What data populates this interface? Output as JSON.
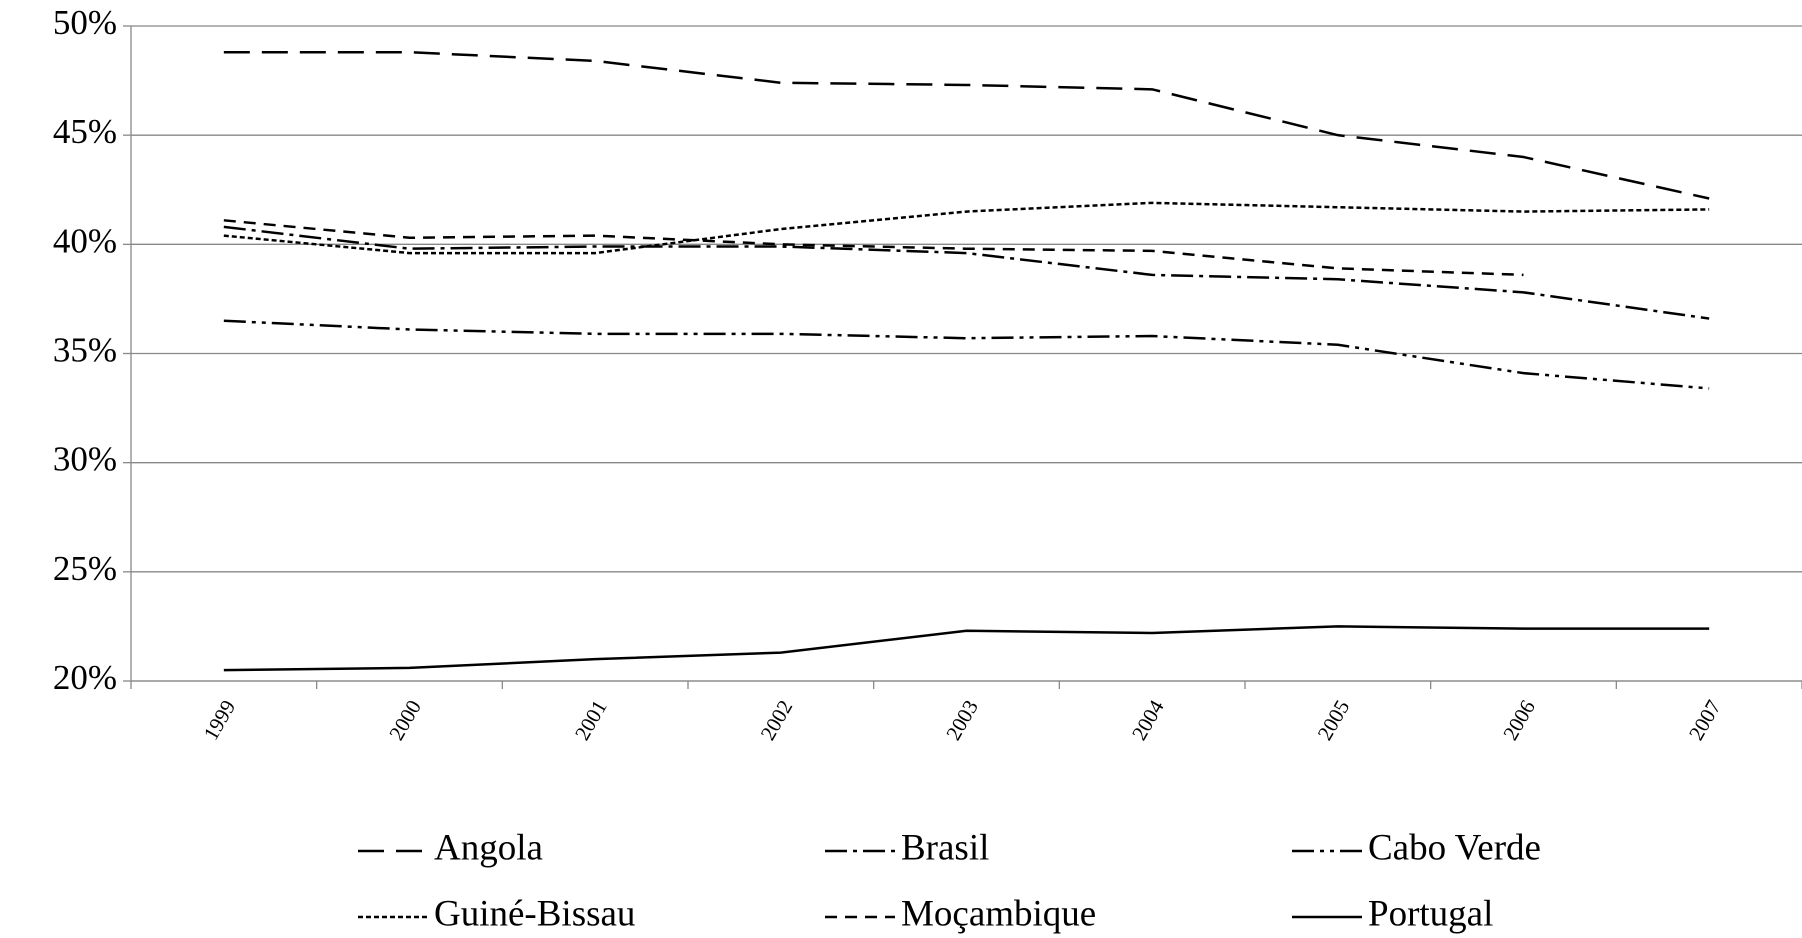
{
  "chart_data": {
    "type": "line",
    "categories": [
      "1999",
      "2000",
      "2001",
      "2002",
      "2003",
      "2004",
      "2005",
      "2006",
      "2007"
    ],
    "series": [
      {
        "name": "Angola",
        "color": "#000000",
        "dash": "26,12",
        "values": [
          48.8,
          48.8,
          48.4,
          47.4,
          47.3,
          47.1,
          45.0,
          44.0,
          42.1
        ]
      },
      {
        "name": "Brasil",
        "color": "#000000",
        "dash": "22,6,4,6",
        "values": [
          40.8,
          39.8,
          39.9,
          39.9,
          39.6,
          38.6,
          38.4,
          37.8,
          36.6
        ]
      },
      {
        "name": "Cabo Verde",
        "color": "#000000",
        "dash": "22,6,4,6,4,6",
        "values": [
          36.5,
          36.1,
          35.9,
          35.9,
          35.7,
          35.8,
          35.4,
          34.1,
          33.4
        ]
      },
      {
        "name": "Guiné-Bissau",
        "color": "#000000",
        "dash": "5,3",
        "values": [
          40.4,
          39.6,
          39.6,
          40.7,
          41.5,
          41.9,
          41.7,
          41.5,
          41.6
        ]
      },
      {
        "name": "Moçambique",
        "color": "#000000",
        "dash": "12,8",
        "values": [
          41.1,
          40.3,
          40.4,
          40.0,
          39.8,
          39.7,
          38.9,
          38.6,
          null
        ]
      },
      {
        "name": "Portugal",
        "color": "#000000",
        "dash": "none",
        "values": [
          20.5,
          20.6,
          21.0,
          21.3,
          22.3,
          22.2,
          22.5,
          22.4,
          22.4
        ]
      }
    ],
    "ylim": [
      20,
      50
    ],
    "yticks": [
      {
        "value": 20,
        "label": "20%"
      },
      {
        "value": 25,
        "label": "25%"
      },
      {
        "value": 30,
        "label": "30%"
      },
      {
        "value": 35,
        "label": "35%"
      },
      {
        "value": 40,
        "label": "40%"
      },
      {
        "value": 45,
        "label": "45%"
      },
      {
        "value": 50,
        "label": "50%"
      }
    ],
    "grid": true,
    "legend": "bottom"
  }
}
